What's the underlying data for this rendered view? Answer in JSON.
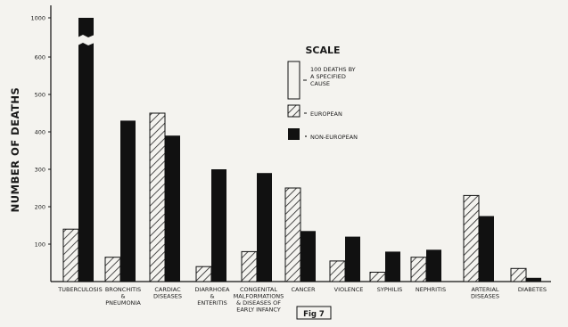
{
  "chart_data": {
    "type": "bar",
    "title": "",
    "ylabel": "NUMBER OF DEATHS",
    "xlabel": "",
    "ylim": [
      0,
      1050
    ],
    "yticks": [
      100,
      200,
      300,
      400,
      500,
      600,
      1000
    ],
    "grid": false,
    "legend": {
      "position": "top-right",
      "heading": "SCALE",
      "items": [
        {
          "key": "scale",
          "label": [
            "100 DEATHS BY",
            "A SPECIFIED",
            "CAUSE"
          ]
        },
        {
          "key": "european",
          "label": [
            "EUROPEAN"
          ]
        },
        {
          "key": "non-european",
          "label": [
            "NON-EUROPEAN"
          ]
        }
      ]
    },
    "categories": [
      "TUBERCULOSIS",
      "BRONCHITIS & PNEUMONIA",
      "CARDIAC DISEASES",
      "DIARRHOEA & ENTERITIS",
      "CONGENITAL MALFORMATIONS & DISEASES OF EARLY INFANCY",
      "CANCER",
      "VIOLENCE",
      "SYPHILIS",
      "NEPHRITIS",
      "ARTERIAL DISEASES",
      "DIABETES"
    ],
    "category_lines": [
      [
        "TUBERCULOSIS"
      ],
      [
        "BRONCHITIS",
        "&",
        "PNEUMONIA"
      ],
      [
        "CARDIAC",
        "DISEASES"
      ],
      [
        "DIARRHOEA",
        "&",
        "ENTERITIS"
      ],
      [
        "CONGENITAL",
        "MALFORMATIONS",
        "& DISEASES OF",
        "EARLY INFANCY"
      ],
      [
        "CANCER"
      ],
      [
        "VIOLENCE"
      ],
      [
        "SYPHILIS"
      ],
      [
        "NEPHRITIS"
      ],
      [
        "ARTERIAL",
        "DISEASES"
      ],
      [
        "DIABETES"
      ]
    ],
    "series": [
      {
        "name": "EUROPEAN",
        "pattern": "hatched",
        "values": [
          140,
          65,
          450,
          40,
          80,
          250,
          55,
          25,
          65,
          230,
          35
        ]
      },
      {
        "name": "NON-EUROPEAN",
        "pattern": "solid",
        "values": [
          1000,
          430,
          390,
          300,
          290,
          135,
          120,
          80,
          85,
          175,
          10
        ]
      }
    ],
    "broken_bar_note": "Tuberculosis non-European bar drawn with an axis break",
    "caption": "Fig 7",
    "colors": {
      "solid": "#111111",
      "hatch": "#222222",
      "background": "#f4f3ef"
    }
  }
}
